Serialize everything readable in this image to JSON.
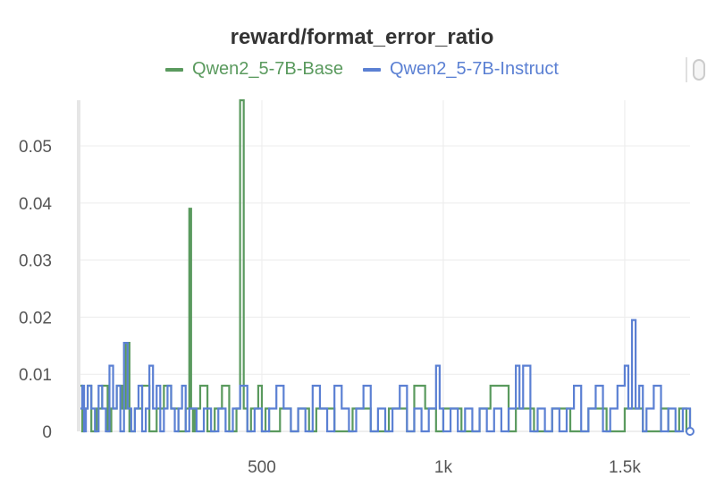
{
  "chart_data": {
    "type": "line",
    "title": "reward/format_error_ratio",
    "xlabel": "",
    "ylabel": "",
    "xlim": [
      0,
      1680
    ],
    "ylim": [
      0,
      0.058
    ],
    "x_ticks": [
      500,
      1000,
      1500
    ],
    "x_tick_labels": [
      "500",
      "1k",
      "1.5k"
    ],
    "y_ticks": [
      0,
      0.01,
      0.02,
      0.03,
      0.04,
      0.05
    ],
    "y_tick_labels": [
      "0",
      "0.01",
      "0.02",
      "0.03",
      "0.04",
      "0.05"
    ],
    "grid": true,
    "legend_position": "top-center",
    "series": [
      {
        "name": "Qwen2_5-7B-Base",
        "color": "#5a9a5e",
        "x": [
          0,
          5,
          10,
          20,
          30,
          45,
          60,
          75,
          85,
          100,
          115,
          125,
          130,
          135,
          150,
          170,
          190,
          210,
          230,
          250,
          270,
          290,
          300,
          305,
          310,
          315,
          330,
          350,
          370,
          390,
          410,
          430,
          440,
          445,
          450,
          460,
          470,
          490,
          500,
          510,
          520,
          550,
          580,
          600,
          630,
          650,
          700,
          750,
          800,
          850,
          900,
          920,
          950,
          980,
          1000,
          1050,
          1100,
          1130,
          1150,
          1180,
          1200,
          1250,
          1300,
          1350,
          1400,
          1450,
          1500,
          1550,
          1600,
          1620,
          1650,
          1670,
          1680
        ],
        "y": [
          0.008,
          0,
          0.004,
          0.008,
          0,
          0.004,
          0.008,
          0,
          0.004,
          0.008,
          0.004,
          0.0155,
          0.0155,
          0,
          0.004,
          0.008,
          0,
          0.004,
          0.008,
          0.004,
          0,
          0.004,
          0.039,
          0.004,
          0,
          0.004,
          0.008,
          0,
          0.004,
          0.008,
          0,
          0.004,
          0.058,
          0.058,
          0.004,
          0,
          0.004,
          0.008,
          0,
          0.004,
          0,
          0.004,
          0,
          0.004,
          0,
          0.004,
          0,
          0.004,
          0,
          0.004,
          0,
          0.008,
          0.004,
          0,
          0.004,
          0,
          0.004,
          0.008,
          0.008,
          0,
          0.004,
          0,
          0.004,
          0,
          0.004,
          0,
          0.004,
          0,
          0.004,
          0,
          0.004,
          0,
          0.004
        ]
      },
      {
        "name": "Qwen2_5-7B-Instruct",
        "color": "#5b80d3",
        "x": [
          0,
          5,
          10,
          15,
          20,
          30,
          40,
          50,
          60,
          70,
          80,
          90,
          100,
          110,
          120,
          130,
          140,
          150,
          160,
          170,
          180,
          190,
          200,
          210,
          220,
          230,
          240,
          250,
          260,
          270,
          280,
          290,
          300,
          320,
          340,
          360,
          380,
          400,
          420,
          440,
          460,
          480,
          500,
          520,
          540,
          560,
          580,
          600,
          620,
          640,
          660,
          680,
          700,
          720,
          740,
          760,
          780,
          800,
          820,
          840,
          860,
          880,
          900,
          920,
          940,
          960,
          980,
          990,
          1000,
          1020,
          1040,
          1060,
          1080,
          1100,
          1120,
          1140,
          1160,
          1180,
          1200,
          1210,
          1220,
          1240,
          1260,
          1280,
          1300,
          1320,
          1340,
          1360,
          1380,
          1400,
          1420,
          1440,
          1460,
          1480,
          1500,
          1510,
          1520,
          1530,
          1540,
          1550,
          1560,
          1580,
          1600,
          1620,
          1640,
          1660,
          1680
        ],
        "y": [
          0.004,
          0.008,
          0,
          0.004,
          0.008,
          0.004,
          0,
          0.008,
          0.004,
          0,
          0.0115,
          0.004,
          0.008,
          0,
          0.0155,
          0.004,
          0,
          0.004,
          0.008,
          0,
          0.004,
          0.0115,
          0.004,
          0.008,
          0,
          0.004,
          0.008,
          0.004,
          0,
          0.004,
          0.008,
          0,
          0.004,
          0,
          0.004,
          0,
          0.004,
          0,
          0.004,
          0.008,
          0,
          0.004,
          0,
          0.004,
          0.008,
          0.004,
          0,
          0.004,
          0,
          0.008,
          0.004,
          0,
          0.008,
          0.004,
          0,
          0.004,
          0.008,
          0,
          0.004,
          0,
          0.004,
          0.008,
          0,
          0.004,
          0,
          0.004,
          0.0115,
          0.004,
          0,
          0.004,
          0,
          0.004,
          0,
          0.004,
          0,
          0.004,
          0,
          0.004,
          0.0115,
          0.004,
          0.0115,
          0,
          0.004,
          0,
          0.004,
          0,
          0.004,
          0.008,
          0,
          0.004,
          0.008,
          0,
          0.004,
          0.008,
          0.0115,
          0.004,
          0.0195,
          0.004,
          0.008,
          0,
          0.004,
          0.008,
          0,
          0.004,
          0,
          0.004,
          0
        ]
      }
    ]
  }
}
